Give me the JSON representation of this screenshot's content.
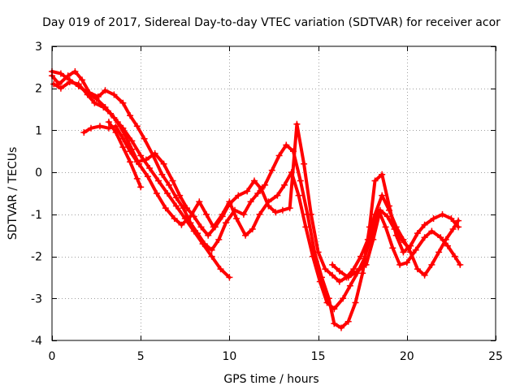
{
  "chart_data": {
    "type": "scatter",
    "title": "Day 019 of 2017, Sidereal Day-to-day VTEC variation (SDTVAR) for receiver acor",
    "xlabel": "GPS time / hours",
    "ylabel": "SDTVAR / TECUs",
    "xlim": [
      0,
      25
    ],
    "ylim": [
      -4,
      3
    ],
    "xticks": [
      0,
      5,
      10,
      15,
      20,
      25
    ],
    "yticks": [
      -4,
      -3,
      -2,
      -1,
      0,
      1,
      2,
      3
    ],
    "xtick_labels": [
      "0",
      "5",
      "10",
      "15",
      "20",
      "25"
    ],
    "ytick_labels": [
      "-4",
      "-3",
      "-2",
      "-1",
      "0",
      "1",
      "2",
      "3"
    ],
    "grid": true,
    "marker": "+",
    "color": "#ff0000",
    "series": [
      {
        "name": "track-1",
        "x": [
          0.0,
          0.4,
          0.9,
          1.3,
          1.7,
          2.1,
          2.6,
          3.0,
          3.5,
          4.0,
          4.4,
          4.8,
          5.2,
          5.7,
          6.2,
          6.6,
          7.0,
          7.4,
          7.8,
          8.2,
          8.6,
          9.0,
          9.4,
          9.8,
          10.3,
          10.8,
          11.2,
          11.6,
          12.0,
          12.4,
          12.8,
          13.2,
          13.6,
          14.0,
          14.4,
          14.8,
          15.2,
          15.6,
          15.9,
          16.3,
          16.7,
          17.1,
          17.5,
          17.9,
          18.2,
          18.6,
          19.0,
          19.4,
          19.8,
          20.2,
          20.6,
          21.0,
          21.5,
          22.0,
          22.5,
          22.9
        ],
        "y": [
          2.3,
          2.1,
          2.3,
          2.4,
          2.2,
          1.9,
          1.8,
          1.95,
          1.85,
          1.65,
          1.35,
          1.1,
          0.8,
          0.4,
          -0.05,
          -0.3,
          -0.6,
          -0.85,
          -1.2,
          -1.45,
          -1.7,
          -1.85,
          -1.6,
          -1.2,
          -0.9,
          -1.0,
          -0.7,
          -0.5,
          -0.3,
          0.05,
          0.4,
          0.65,
          0.5,
          -0.2,
          -1.0,
          -1.9,
          -2.5,
          -3.0,
          -3.6,
          -3.7,
          -3.55,
          -3.1,
          -2.4,
          -1.3,
          -0.2,
          -0.05,
          -0.8,
          -1.5,
          -1.9,
          -1.75,
          -1.45,
          -1.25,
          -1.1,
          -1.0,
          -1.1,
          -1.3
        ]
      },
      {
        "name": "track-2",
        "x": [
          0.1,
          0.5,
          1.0,
          1.5,
          2.0,
          2.4,
          2.9,
          3.3,
          3.7,
          4.1,
          4.5,
          4.9,
          5.4,
          5.9,
          6.4,
          6.9,
          7.3,
          7.8,
          8.3,
          8.7,
          9.1,
          9.6,
          10.0,
          10.4,
          10.9,
          11.3,
          11.7,
          12.2,
          12.7,
          13.1,
          13.5,
          13.9,
          14.3,
          14.7,
          15.1,
          15.5,
          15.9,
          16.4,
          16.8,
          17.2,
          17.6,
          18.0,
          18.4,
          18.8,
          19.2,
          19.6,
          20.0,
          20.5,
          21.0,
          21.4,
          21.9,
          22.3,
          22.7,
          23.0
        ],
        "y": [
          2.1,
          2.0,
          2.15,
          2.1,
          1.85,
          1.65,
          1.55,
          1.4,
          1.2,
          0.9,
          0.55,
          0.2,
          -0.1,
          -0.5,
          -0.85,
          -1.1,
          -1.25,
          -1.05,
          -0.7,
          -1.0,
          -1.3,
          -1.0,
          -0.7,
          -1.1,
          -1.5,
          -1.35,
          -1.0,
          -0.7,
          -0.55,
          -0.3,
          0.0,
          -0.55,
          -1.3,
          -2.0,
          -2.6,
          -3.1,
          -3.25,
          -3.0,
          -2.7,
          -2.4,
          -2.05,
          -1.5,
          -0.9,
          -1.3,
          -1.8,
          -2.2,
          -2.15,
          -1.85,
          -1.55,
          -1.4,
          -1.55,
          -1.75,
          -2.0,
          -2.2
        ]
      },
      {
        "name": "track-3",
        "x": [
          1.8,
          2.2,
          2.7,
          3.2,
          3.6,
          4.0,
          4.4,
          4.8,
          5.3,
          5.8,
          6.3,
          6.8,
          7.2,
          7.6,
          8.0,
          8.4,
          8.8,
          9.2,
          9.6,
          10.0,
          10.5,
          11.0,
          11.4,
          11.8,
          12.2,
          12.6,
          13.0,
          13.4,
          13.8,
          14.2,
          14.6,
          15.0,
          15.4,
          15.8,
          16.2,
          16.6,
          17.0,
          17.4,
          17.8,
          18.2,
          18.6,
          19.0,
          19.4,
          19.8,
          20.2,
          20.6,
          21.0,
          21.4,
          21.8,
          22.2,
          22.6,
          22.9
        ],
        "y": [
          0.95,
          1.05,
          1.1,
          1.05,
          1.1,
          0.8,
          0.5,
          0.25,
          0.3,
          0.45,
          0.2,
          -0.2,
          -0.55,
          -0.85,
          -1.05,
          -1.3,
          -1.5,
          -1.3,
          -1.05,
          -0.75,
          -0.55,
          -0.45,
          -0.2,
          -0.4,
          -0.8,
          -0.95,
          -0.9,
          -0.85,
          1.15,
          0.2,
          -1.0,
          -1.9,
          -2.3,
          -2.45,
          -2.6,
          -2.5,
          -2.3,
          -2.0,
          -1.6,
          -1.0,
          -0.55,
          -0.9,
          -1.3,
          -1.6,
          -1.9,
          -2.3,
          -2.45,
          -2.2,
          -1.9,
          -1.6,
          -1.35,
          -1.15
        ]
      },
      {
        "name": "track-4",
        "x": [
          0.0,
          0.5,
          1.0,
          1.5,
          2.0,
          2.5,
          3.0,
          3.5,
          4.0,
          4.5,
          5.0,
          5.5,
          6.0,
          6.5,
          7.0,
          7.5,
          8.0,
          8.5,
          9.0,
          9.5,
          10.0
        ],
        "y": [
          2.4,
          2.35,
          2.2,
          2.05,
          1.9,
          1.75,
          1.55,
          1.3,
          1.05,
          0.75,
          0.4,
          0.1,
          -0.2,
          -0.5,
          -0.8,
          -1.1,
          -1.4,
          -1.7,
          -2.0,
          -2.3,
          -2.5
        ]
      },
      {
        "name": "track-5",
        "x": [
          3.2,
          3.6,
          4.0,
          4.4,
          4.8,
          5.0
        ],
        "y": [
          1.2,
          0.95,
          0.6,
          0.25,
          -0.15,
          -0.35
        ]
      },
      {
        "name": "track-6",
        "x": [
          15.8,
          16.2,
          16.7,
          17.2,
          17.7,
          18.1,
          18.5,
          18.9,
          19.3,
          19.7,
          20.1
        ],
        "y": [
          -2.2,
          -2.35,
          -2.5,
          -2.35,
          -2.2,
          -1.6,
          -0.9,
          -1.05,
          -1.35,
          -1.6,
          -1.8
        ]
      }
    ]
  }
}
